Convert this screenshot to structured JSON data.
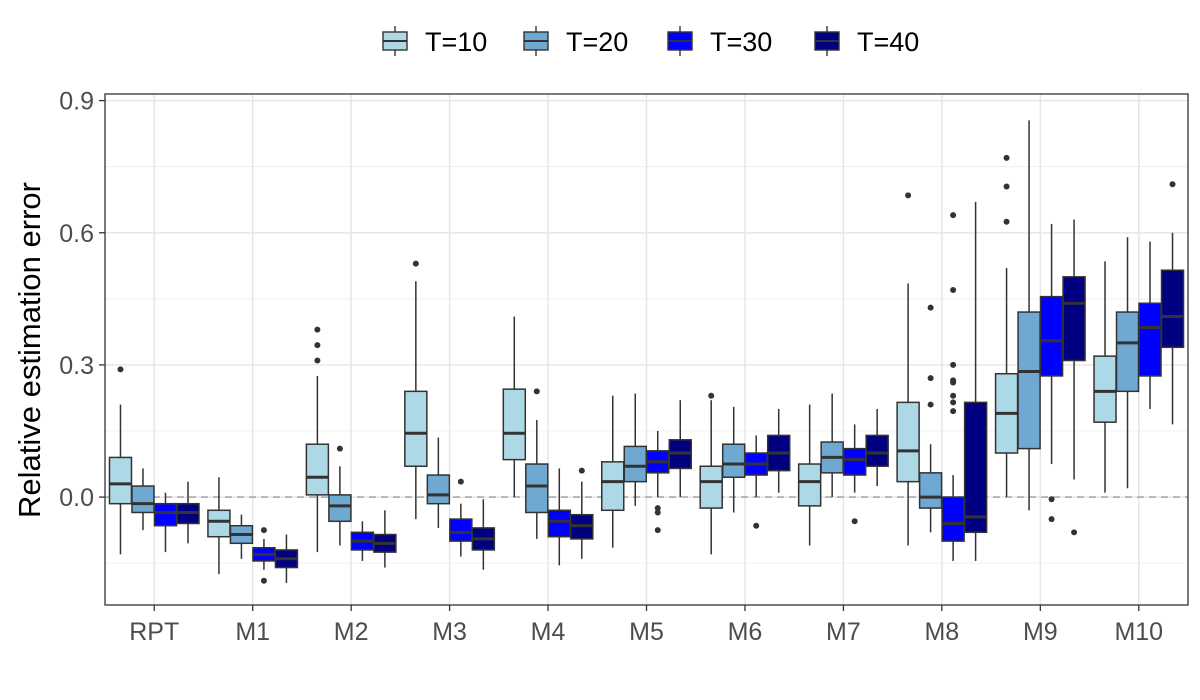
{
  "chart_data": {
    "type": "boxplot",
    "title": "",
    "xlabel": "",
    "ylabel": "Relative estimation error",
    "ylim": [
      -0.245,
      0.915
    ],
    "yticks": [
      0.0,
      0.3,
      0.6,
      0.9
    ],
    "ytick_labels": [
      "0.0",
      "0.3",
      "0.6",
      "0.9"
    ],
    "reference_line": 0.0,
    "grid": true,
    "legend_position": "top",
    "categories": [
      "RPT",
      "M1",
      "M2",
      "M3",
      "M4",
      "M5",
      "M6",
      "M7",
      "M8",
      "M9",
      "M10"
    ],
    "series": [
      {
        "name": "T=10",
        "color": "#add8e6",
        "boxes": [
          {
            "whislo": -0.13,
            "q1": -0.015,
            "med": 0.03,
            "q3": 0.09,
            "whishi": 0.21,
            "fliers": [
              0.29
            ]
          },
          {
            "whislo": -0.175,
            "q1": -0.09,
            "med": -0.055,
            "q3": -0.03,
            "whishi": 0.045,
            "fliers": []
          },
          {
            "whislo": -0.125,
            "q1": 0.005,
            "med": 0.045,
            "q3": 0.12,
            "whishi": 0.275,
            "fliers": [
              0.31,
              0.345,
              0.38
            ]
          },
          {
            "whislo": -0.05,
            "q1": 0.07,
            "med": 0.145,
            "q3": 0.24,
            "whishi": 0.49,
            "fliers": [
              0.53
            ]
          },
          {
            "whislo": 0.0,
            "q1": 0.085,
            "med": 0.145,
            "q3": 0.245,
            "whishi": 0.41,
            "fliers": []
          },
          {
            "whislo": -0.115,
            "q1": -0.03,
            "med": 0.035,
            "q3": 0.08,
            "whishi": 0.23,
            "fliers": []
          },
          {
            "whislo": -0.13,
            "q1": -0.025,
            "med": 0.035,
            "q3": 0.07,
            "whishi": 0.22,
            "fliers": [
              0.23
            ]
          },
          {
            "whislo": -0.11,
            "q1": -0.02,
            "med": 0.035,
            "q3": 0.075,
            "whishi": 0.21,
            "fliers": []
          },
          {
            "whislo": -0.11,
            "q1": 0.035,
            "med": 0.105,
            "q3": 0.215,
            "whishi": 0.485,
            "fliers": [
              0.685
            ]
          },
          {
            "whislo": 0.0,
            "q1": 0.1,
            "med": 0.19,
            "q3": 0.28,
            "whishi": 0.52,
            "fliers": [
              0.625,
              0.705,
              0.77
            ]
          },
          {
            "whislo": 0.01,
            "q1": 0.17,
            "med": 0.24,
            "q3": 0.32,
            "whishi": 0.535,
            "fliers": []
          }
        ]
      },
      {
        "name": "T=20",
        "color": "#6fa8d0",
        "boxes": [
          {
            "whislo": -0.075,
            "q1": -0.035,
            "med": -0.015,
            "q3": 0.025,
            "whishi": 0.065,
            "fliers": []
          },
          {
            "whislo": -0.14,
            "q1": -0.105,
            "med": -0.085,
            "q3": -0.065,
            "whishi": -0.04,
            "fliers": []
          },
          {
            "whislo": -0.11,
            "q1": -0.055,
            "med": -0.02,
            "q3": 0.005,
            "whishi": 0.07,
            "fliers": [
              0.11
            ]
          },
          {
            "whislo": -0.07,
            "q1": -0.015,
            "med": 0.005,
            "q3": 0.05,
            "whishi": 0.135,
            "fliers": []
          },
          {
            "whislo": -0.095,
            "q1": -0.035,
            "med": 0.025,
            "q3": 0.075,
            "whishi": 0.175,
            "fliers": [
              0.24
            ]
          },
          {
            "whislo": -0.02,
            "q1": 0.035,
            "med": 0.07,
            "q3": 0.115,
            "whishi": 0.235,
            "fliers": []
          },
          {
            "whislo": -0.035,
            "q1": 0.045,
            "med": 0.075,
            "q3": 0.12,
            "whishi": 0.205,
            "fliers": []
          },
          {
            "whislo": 0.0,
            "q1": 0.055,
            "med": 0.09,
            "q3": 0.125,
            "whishi": 0.235,
            "fliers": []
          },
          {
            "whislo": -0.08,
            "q1": -0.025,
            "med": 0.0,
            "q3": 0.055,
            "whishi": 0.12,
            "fliers": [
              0.21,
              0.27,
              0.43
            ]
          },
          {
            "whislo": -0.03,
            "q1": 0.11,
            "med": 0.285,
            "q3": 0.42,
            "whishi": 0.855,
            "fliers": []
          },
          {
            "whislo": 0.02,
            "q1": 0.24,
            "med": 0.35,
            "q3": 0.42,
            "whishi": 0.59,
            "fliers": []
          }
        ]
      },
      {
        "name": "T=30",
        "color": "#0000ff",
        "boxes": [
          {
            "whislo": -0.125,
            "q1": -0.065,
            "med": -0.035,
            "q3": -0.015,
            "whishi": 0.01,
            "fliers": []
          },
          {
            "whislo": -0.165,
            "q1": -0.145,
            "med": -0.13,
            "q3": -0.115,
            "whishi": -0.095,
            "fliers": [
              -0.075,
              -0.19
            ]
          },
          {
            "whislo": -0.145,
            "q1": -0.12,
            "med": -0.1,
            "q3": -0.08,
            "whishi": -0.055,
            "fliers": []
          },
          {
            "whislo": -0.135,
            "q1": -0.1,
            "med": -0.08,
            "q3": -0.05,
            "whishi": -0.015,
            "fliers": [
              0.035
            ]
          },
          {
            "whislo": -0.155,
            "q1": -0.09,
            "med": -0.055,
            "q3": -0.03,
            "whishi": 0.065,
            "fliers": []
          },
          {
            "whislo": 0.0,
            "q1": 0.055,
            "med": 0.08,
            "q3": 0.105,
            "whishi": 0.15,
            "fliers": [
              -0.025,
              -0.035,
              -0.075
            ]
          },
          {
            "whislo": 0.0,
            "q1": 0.05,
            "med": 0.075,
            "q3": 0.1,
            "whishi": 0.14,
            "fliers": [
              -0.065
            ]
          },
          {
            "whislo": 0.01,
            "q1": 0.05,
            "med": 0.085,
            "q3": 0.11,
            "whishi": 0.165,
            "fliers": [
              -0.055
            ]
          },
          {
            "whislo": -0.145,
            "q1": -0.1,
            "med": -0.06,
            "q3": 0.0,
            "whishi": 0.05,
            "fliers": [
              0.195,
              0.215,
              0.23,
              0.26,
              0.265,
              0.3,
              0.47,
              0.64
            ]
          },
          {
            "whislo": 0.075,
            "q1": 0.275,
            "med": 0.355,
            "q3": 0.455,
            "whishi": 0.62,
            "fliers": [
              -0.005,
              -0.05
            ]
          },
          {
            "whislo": 0.2,
            "q1": 0.275,
            "med": 0.385,
            "q3": 0.44,
            "whishi": 0.58,
            "fliers": []
          }
        ]
      },
      {
        "name": "T=40",
        "color": "#000080",
        "boxes": [
          {
            "whislo": -0.105,
            "q1": -0.06,
            "med": -0.035,
            "q3": -0.015,
            "whishi": 0.035,
            "fliers": []
          },
          {
            "whislo": -0.195,
            "q1": -0.16,
            "med": -0.14,
            "q3": -0.12,
            "whishi": -0.085,
            "fliers": []
          },
          {
            "whislo": -0.16,
            "q1": -0.125,
            "med": -0.105,
            "q3": -0.085,
            "whishi": -0.03,
            "fliers": []
          },
          {
            "whislo": -0.165,
            "q1": -0.12,
            "med": -0.095,
            "q3": -0.07,
            "whishi": -0.005,
            "fliers": []
          },
          {
            "whislo": -0.14,
            "q1": -0.095,
            "med": -0.065,
            "q3": -0.04,
            "whishi": 0.035,
            "fliers": [
              0.06
            ]
          },
          {
            "whislo": 0.0,
            "q1": 0.065,
            "med": 0.1,
            "q3": 0.13,
            "whishi": 0.22,
            "fliers": []
          },
          {
            "whislo": 0.01,
            "q1": 0.06,
            "med": 0.1,
            "q3": 0.14,
            "whishi": 0.2,
            "fliers": []
          },
          {
            "whislo": 0.025,
            "q1": 0.07,
            "med": 0.1,
            "q3": 0.14,
            "whishi": 0.2,
            "fliers": []
          },
          {
            "whislo": -0.145,
            "q1": -0.08,
            "med": -0.045,
            "q3": 0.215,
            "whishi": 0.67,
            "fliers": []
          },
          {
            "whislo": 0.04,
            "q1": 0.31,
            "med": 0.44,
            "q3": 0.5,
            "whishi": 0.63,
            "fliers": [
              -0.08
            ]
          },
          {
            "whislo": 0.165,
            "q1": 0.34,
            "med": 0.41,
            "q3": 0.515,
            "whishi": 0.6,
            "fliers": [
              0.71
            ]
          }
        ]
      }
    ]
  }
}
